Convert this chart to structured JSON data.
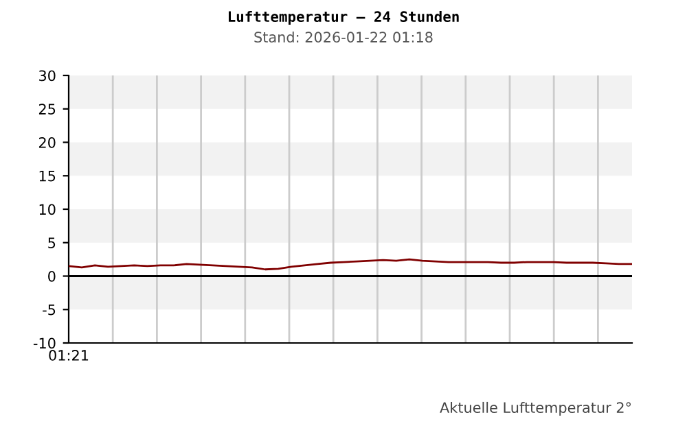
{
  "chart_data": {
    "type": "line",
    "title": "Lufttemperatur – 24 Stunden",
    "subtitle": "Stand: 2026-01-22 01:18",
    "categories": [
      "01:21",
      null,
      null,
      null,
      null,
      null,
      null,
      null,
      null,
      null,
      null,
      null,
      null,
      null,
      null,
      null,
      null,
      null,
      null,
      null,
      null,
      null,
      null,
      null,
      null,
      null,
      null,
      null,
      null,
      null,
      null,
      null,
      null,
      null,
      null,
      null,
      null,
      null,
      null,
      null,
      null,
      null,
      null,
      null
    ],
    "series": [
      {
        "color": "#800000",
        "values": [
          1.5,
          1.3,
          1.6,
          1.4,
          1.5,
          1.6,
          1.5,
          1.6,
          1.6,
          1.8,
          1.7,
          1.6,
          1.5,
          1.4,
          1.3,
          1.0,
          1.1,
          1.4,
          1.6,
          1.8,
          2.0,
          2.1,
          2.2,
          2.3,
          2.4,
          2.3,
          2.5,
          2.3,
          2.2,
          2.1,
          2.1,
          2.1,
          2.1,
          2.0,
          2.0,
          2.1,
          2.1,
          2.1,
          2.0,
          2.0,
          2.0,
          1.9,
          1.8,
          1.8
        ]
      }
    ],
    "ylim": [
      -10,
      30
    ],
    "yticks": [
      -10,
      -5,
      0,
      5,
      10,
      15,
      20,
      25,
      30
    ],
    "grid": "x",
    "marker": "none",
    "line_style": "solid",
    "ref_lines": [
      {
        "axis": "y",
        "value": 0,
        "color": "#000000"
      }
    ],
    "bands": [
      {
        "axis": "y",
        "from": 25,
        "to": 30,
        "color": "#f2f2f2"
      },
      {
        "axis": "y",
        "from": 15,
        "to": 20,
        "color": "#f2f2f2"
      },
      {
        "axis": "y",
        "from": 5,
        "to": 10,
        "color": "#f2f2f2"
      },
      {
        "axis": "y",
        "from": -5,
        "to": 0,
        "color": "#f2f2f2"
      }
    ],
    "annotations": [
      "Aktuelle Lufttemperatur 2°"
    ]
  }
}
